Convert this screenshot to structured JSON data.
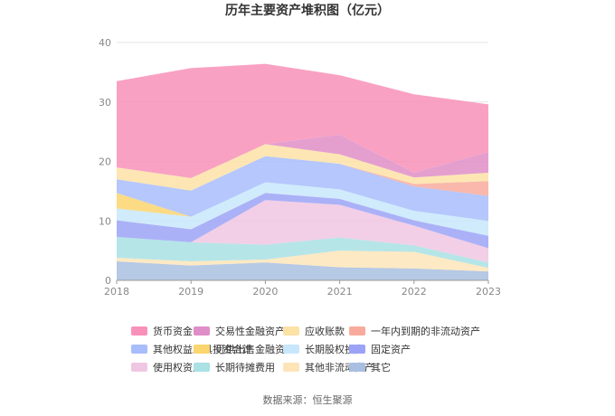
{
  "chart_data": {
    "type": "area",
    "stacked": true,
    "title": "历年主要资产堆积图（亿元）",
    "x": [
      "2018",
      "2019",
      "2020",
      "2021",
      "2022",
      "2023"
    ],
    "ylim": [
      0,
      40
    ],
    "yticks": [
      0,
      10,
      20,
      30,
      40
    ],
    "grid": true,
    "legend_position": "bottom",
    "series": [
      {
        "name": "货币资金",
        "color": "#f891b9",
        "values": [
          14.5,
          18.5,
          13.5,
          10.0,
          13.2,
          8.0
        ]
      },
      {
        "name": "交易性金融资产",
        "color": "#e08ec7",
        "values": [
          0,
          0,
          0,
          3.3,
          0.8,
          3.5
        ]
      },
      {
        "name": "应收账款",
        "color": "#fde2a6",
        "values": [
          2.0,
          2.1,
          2.0,
          1.6,
          1.1,
          1.4
        ]
      },
      {
        "name": "一年内到期的非流动资产",
        "color": "#f8ab9c",
        "values": [
          0,
          0,
          0,
          0,
          0.4,
          2.5
        ]
      },
      {
        "name": "其他权益工具投资合计",
        "color": "#a8bdfb",
        "values": [
          2.3,
          4.4,
          4.4,
          4.3,
          4.1,
          4.2
        ]
      },
      {
        "name": "可供出售金融资产",
        "color": "#fbd56e",
        "values": [
          2.6,
          0,
          0,
          0,
          0,
          0
        ]
      },
      {
        "name": "长期股权投资",
        "color": "#c8e7fc",
        "values": [
          2.0,
          2.1,
          1.8,
          1.6,
          1.6,
          2.5
        ]
      },
      {
        "name": "固定资产",
        "color": "#9ca3f6",
        "values": [
          2.8,
          2.2,
          1.2,
          1.0,
          0.9,
          2.1
        ]
      },
      {
        "name": "使用权资产",
        "color": "#f0c7e3",
        "values": [
          0,
          0,
          7.5,
          5.5,
          3.3,
          2.4
        ]
      },
      {
        "name": "长期待摊费用",
        "color": "#a9e1e4",
        "values": [
          3.5,
          3.2,
          2.5,
          2.2,
          1.1,
          0.9
        ]
      },
      {
        "name": "其他非流动资产",
        "color": "#fde5b8",
        "values": [
          0.6,
          0.7,
          0.5,
          2.8,
          2.8,
          0.6
        ]
      },
      {
        "name": "其它",
        "color": "#a9bfe1",
        "values": [
          3.2,
          2.5,
          3.0,
          2.2,
          2.0,
          1.5
        ]
      }
    ],
    "source": "数据来源：恒生聚源"
  }
}
